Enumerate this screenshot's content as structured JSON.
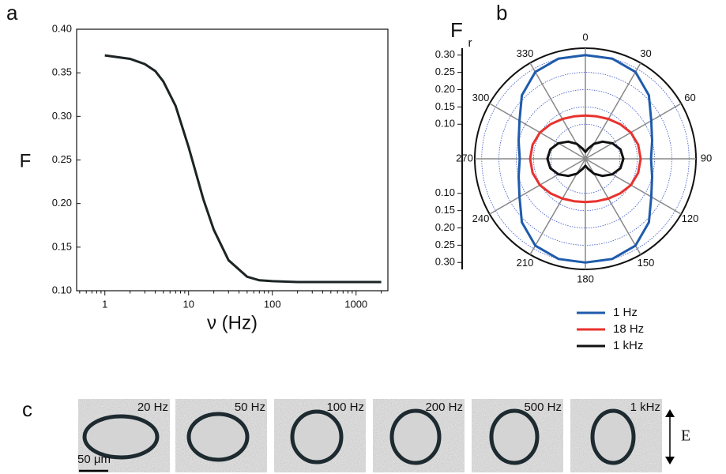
{
  "panel_labels": [
    "a",
    "b",
    "c"
  ],
  "chart_data": [
    {
      "type": "line",
      "xlabel": "ν (Hz)",
      "ylabel": "F",
      "log_x": true,
      "x": [
        1,
        2,
        3,
        4,
        5,
        7,
        10,
        15,
        20,
        30,
        50,
        70,
        100,
        200,
        500,
        1000,
        2000
      ],
      "values": [
        0.37,
        0.366,
        0.36,
        0.352,
        0.34,
        0.312,
        0.265,
        0.205,
        0.17,
        0.135,
        0.116,
        0.112,
        0.111,
        0.11,
        0.11,
        0.11,
        0.11
      ],
      "color": "#1c2424",
      "xlim": [
        0.46,
        2400
      ],
      "xticks": [
        1,
        10,
        100,
        1000
      ],
      "xminorticks": [
        0.5,
        0.6,
        0.7,
        0.8,
        0.9,
        2,
        3,
        4,
        5,
        6,
        7,
        8,
        9,
        20,
        30,
        40,
        50,
        60,
        70,
        80,
        90,
        200,
        300,
        400,
        500,
        600,
        700,
        800,
        900,
        2000
      ],
      "ylim": [
        0.1,
        0.4
      ],
      "yticks": [
        {
          "value": 0.1,
          "label": "0.10"
        },
        0.15,
        {
          "value": 0.2,
          "label": "0.20"
        },
        0.25,
        {
          "value": 0.3,
          "label": "0.30"
        },
        0.35,
        {
          "value": 0.4,
          "label": "0.40"
        }
      ]
    },
    {
      "type": "polar",
      "r_label": {
        "main": "F",
        "sub": "r"
      },
      "rlim": [
        0,
        0.32
      ],
      "rticks": [
        {
          "value": 0.1,
          "label": "0.10"
        },
        0.15,
        {
          "value": 0.2,
          "label": "0.20"
        },
        0.25,
        {
          "value": 0.3,
          "label": "0.30"
        }
      ],
      "thetaticks": [
        0,
        30,
        60,
        90,
        120,
        150,
        180,
        210,
        240,
        270,
        300,
        330
      ],
      "theta": [
        0,
        15,
        30,
        45,
        60,
        75,
        90,
        105,
        120,
        135,
        150,
        165,
        180,
        195,
        210,
        225,
        240,
        255,
        270,
        285,
        300,
        315,
        330,
        345
      ],
      "series": [
        {
          "name": "1 Hz",
          "color": "#1f5bab",
          "values": [
            0.3,
            0.3,
            0.29,
            0.26,
            0.22,
            0.2,
            0.19,
            0.2,
            0.22,
            0.26,
            0.29,
            0.3,
            0.3,
            0.3,
            0.29,
            0.26,
            0.22,
            0.2,
            0.19,
            0.2,
            0.22,
            0.26,
            0.29,
            0.3
          ]
        },
        {
          "name": "18 Hz",
          "color": "#e8322d",
          "values": [
            0.125,
            0.127,
            0.133,
            0.142,
            0.152,
            0.158,
            0.16,
            0.158,
            0.152,
            0.142,
            0.133,
            0.127,
            0.125,
            0.127,
            0.133,
            0.142,
            0.152,
            0.158,
            0.16,
            0.158,
            0.152,
            0.142,
            0.133,
            0.127
          ]
        },
        {
          "name": "1 kHz",
          "color": "#111111",
          "values": [
            0.02,
            0.03,
            0.05,
            0.07,
            0.09,
            0.105,
            0.11,
            0.105,
            0.09,
            0.07,
            0.05,
            0.03,
            0.02,
            0.03,
            0.05,
            0.07,
            0.09,
            0.105,
            0.11,
            0.105,
            0.09,
            0.07,
            0.05,
            0.03
          ]
        }
      ]
    }
  ],
  "image_strip": {
    "frames": [
      "20 Hz",
      "50 Hz",
      "100 Hz",
      "200 Hz",
      "500 Hz",
      "1 kHz"
    ],
    "scale_bar": "50 μm",
    "field_label": "E"
  }
}
